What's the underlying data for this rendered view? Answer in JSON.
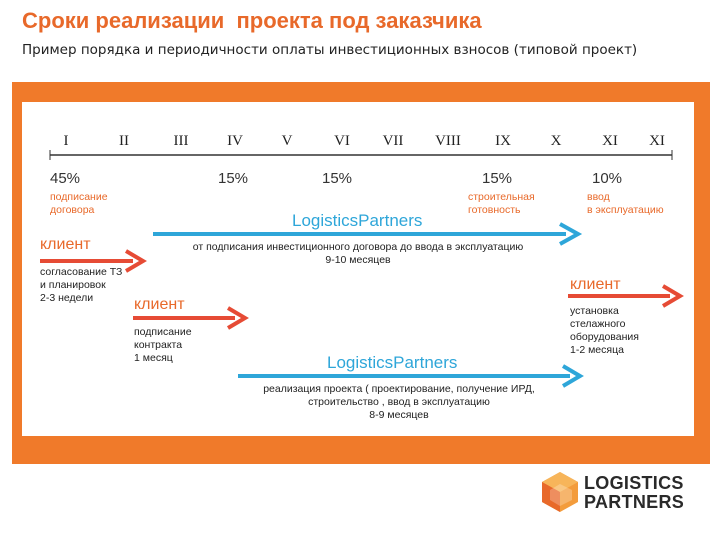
{
  "header": {
    "title": "Сроки реализации  проекта под заказчика",
    "subtitle": "Пример порядка и периодичности оплаты инвестиционных взносов (типовой проект)"
  },
  "timeline": {
    "months": [
      "I",
      "II",
      "III",
      "IV",
      "V",
      "VI",
      "VII",
      "VIII",
      "IX",
      "X",
      "XI",
      "XI"
    ],
    "payments": [
      {
        "percent": "45%",
        "note": [
          "подписание",
          "договора"
        ]
      },
      {
        "percent": "15%",
        "note": []
      },
      {
        "percent": "15%",
        "note": []
      },
      {
        "percent": "15%",
        "note": [
          "строительная",
          "готовность"
        ]
      },
      {
        "percent": "10%",
        "note": [
          "ввод",
          "в эксплуатацию"
        ]
      }
    ]
  },
  "tracks": {
    "lp_top": {
      "label": "LogisticsPartners",
      "desc": [
        "от подписания инвестиционного договора до ввода в эксплуатацию",
        "9-10 месяцев"
      ]
    },
    "client_1": {
      "label": "клиент",
      "desc": [
        "согласование ТЗ",
        "и планировок",
        "2-3 недели"
      ]
    },
    "client_2": {
      "label": "клиент",
      "desc": [
        "подписание",
        "контракта",
        "1 месяц"
      ]
    },
    "client_3": {
      "label": "клиент",
      "desc": [
        "установка",
        "стелажного",
        "оборудования",
        "1-2 месяца"
      ]
    },
    "lp_bottom": {
      "label": "LogisticsPartners",
      "desc": [
        "реализация проекта ( проектирование, получение ИРД,",
        "строительство , ввод в эксплуатацию",
        "8-9 месяцев"
      ]
    }
  },
  "logo": {
    "line1": "LOGISTICS",
    "line2": "PARTNERS"
  },
  "colors": {
    "orange": "#f07a2a",
    "red_arrow": "#e64b35",
    "blue": "#2ea6d9",
    "text": "#222222"
  }
}
